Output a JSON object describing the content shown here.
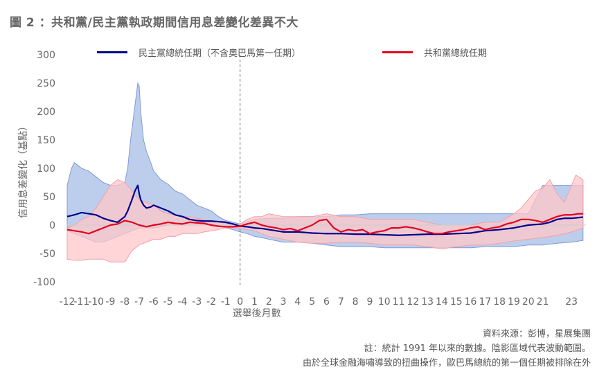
{
  "title": "圖 2 ：共和黨/民主黨執政期間信用息差變化差異不大",
  "legend": {
    "dem_label": "民主黨總統任期（不含奧巴馬第一任期）",
    "rep_label": "共和黨總統任期"
  },
  "footer": {
    "source": "資料來源：彭博，星展集團",
    "note1": "註：統計 1991 年以來的數據。陰影區域代表波動範圍。",
    "note2": "由於全球金融海嘯導致的扭曲操作，歐巴馬總統的第一個任期被排除在外"
  },
  "colors": {
    "dem_line": "#00008B",
    "dem_band": "#A7BDE6",
    "dem_band_edge": "#7F9AD6",
    "rep_line": "#E3001B",
    "rep_band": "#FFC7C9",
    "rep_band_edge": "#F4A0A5",
    "zero_line": "#999999"
  },
  "chart_data": {
    "type": "line",
    "xlabel": "選舉後月數",
    "ylabel": "信用息差變化（基點）",
    "xlim": [
      -12,
      24
    ],
    "ylim": [
      -100,
      300
    ],
    "x_ticks": [
      -12,
      -11,
      -10,
      -9,
      -8,
      -7,
      -6,
      -5,
      -4,
      -3,
      -2,
      -1,
      0,
      1,
      2,
      3,
      4,
      5,
      6,
      7,
      8,
      9,
      10,
      11,
      12,
      13,
      14,
      15,
      16,
      17,
      18,
      19,
      20,
      21,
      23
    ],
    "y_ticks": [
      -100,
      -50,
      0,
      50,
      100,
      150,
      200,
      250,
      300
    ],
    "election_marker_x": 0,
    "grid": false,
    "legend_position": "top",
    "series": [
      {
        "name": "民主黨總統任期（不含奧巴馬第一任期）",
        "x": [
          -12,
          -11.5,
          -11,
          -10.5,
          -10,
          -9.5,
          -9,
          -8.5,
          -8,
          -7.8,
          -7.5,
          -7.3,
          -7.1,
          -7,
          -6.9,
          -6.7,
          -6.5,
          -6.2,
          -6,
          -5.5,
          -5,
          -4.5,
          -4,
          -3.5,
          -3,
          -2.5,
          -2,
          -1.5,
          -1,
          -0.5,
          0,
          0.5,
          1,
          1.5,
          2,
          2.5,
          3,
          4,
          5,
          6,
          7,
          8,
          9,
          10,
          11,
          12,
          13,
          14,
          15,
          16,
          17,
          18,
          19,
          20,
          20.5,
          21,
          21.5,
          22,
          22.5,
          23,
          23.8
        ],
        "values": [
          15,
          18,
          22,
          20,
          18,
          12,
          8,
          5,
          15,
          25,
          45,
          60,
          70,
          55,
          45,
          35,
          30,
          32,
          35,
          30,
          25,
          18,
          15,
          10,
          8,
          7,
          7,
          6,
          5,
          2,
          -2,
          -3,
          -5,
          -6,
          -8,
          -10,
          -12,
          -12,
          -14,
          -15,
          -15,
          -16,
          -16,
          -17,
          -18,
          -17,
          -16,
          -16,
          -15,
          -14,
          -10,
          -8,
          -5,
          0,
          1,
          2,
          5,
          10,
          12,
          12,
          14
        ]
      },
      {
        "name": "民主黨 波動範圍上限",
        "x": [
          -12,
          -11.7,
          -11.5,
          -11,
          -10.5,
          -10,
          -9.5,
          -9,
          -8.5,
          -8,
          -7.8,
          -7.6,
          -7.4,
          -7.2,
          -7.1,
          -7,
          -6.9,
          -6.8,
          -6.7,
          -6.5,
          -6.2,
          -6,
          -5.5,
          -5,
          -4.5,
          -4,
          -3.5,
          -3,
          -2.5,
          -2,
          -1.5,
          -1,
          -0.5,
          0,
          0.5,
          1,
          2,
          3,
          4,
          5,
          6,
          7,
          8,
          9,
          10,
          11,
          12,
          13,
          14,
          15,
          16,
          17,
          18,
          19,
          20,
          21,
          22,
          23,
          23.8
        ],
        "values": [
          70,
          100,
          110,
          100,
          95,
          85,
          75,
          70,
          70,
          75,
          100,
          150,
          190,
          230,
          250,
          245,
          200,
          175,
          150,
          130,
          110,
          95,
          80,
          72,
          60,
          55,
          45,
          35,
          30,
          25,
          15,
          8,
          5,
          2,
          6,
          10,
          12,
          12,
          15,
          15,
          15,
          18,
          18,
          20,
          20,
          20,
          20,
          20,
          20,
          20,
          20,
          20,
          20,
          20,
          20,
          70,
          70,
          70,
          70
        ]
      },
      {
        "name": "民主黨 波動範圍下限",
        "x": [
          -12,
          -11.5,
          -11,
          -10.5,
          -10,
          -9.5,
          -9,
          -8.5,
          -8,
          -7.5,
          -7,
          -6.5,
          -6,
          -5.5,
          -5,
          -4.5,
          -4,
          -3.5,
          -3,
          -2.5,
          -2,
          -1.5,
          -1,
          -0.5,
          0,
          0.5,
          1,
          1.5,
          2,
          3,
          4,
          5,
          6,
          7,
          8,
          9,
          10,
          11,
          12,
          13,
          14,
          15,
          16,
          17,
          18,
          19,
          20,
          21,
          22,
          23,
          23.8
        ],
        "values": [
          -10,
          -15,
          -20,
          -25,
          -30,
          -30,
          -25,
          -20,
          -15,
          -10,
          -5,
          -5,
          -5,
          -3,
          0,
          0,
          0,
          0,
          0,
          0,
          0,
          -2,
          -5,
          -8,
          -12,
          -15,
          -20,
          -22,
          -25,
          -30,
          -30,
          -32,
          -35,
          -38,
          -38,
          -38,
          -40,
          -40,
          -40,
          -40,
          -40,
          -40,
          -40,
          -38,
          -38,
          -38,
          -35,
          -35,
          -32,
          -30,
          -27
        ]
      },
      {
        "name": "共和黨總統任期",
        "x": [
          -12,
          -11.5,
          -11,
          -10.5,
          -10,
          -9.5,
          -9,
          -8.5,
          -8,
          -7.5,
          -7,
          -6.5,
          -6,
          -5.5,
          -5,
          -4.5,
          -4,
          -3.5,
          -3,
          -2.5,
          -2,
          -1.5,
          -1,
          -0.5,
          0,
          0.5,
          1,
          1.5,
          2,
          2.5,
          3,
          3.5,
          4,
          4.5,
          5,
          5.5,
          6,
          6.5,
          7,
          7.5,
          8,
          8.5,
          9,
          9.5,
          10,
          10.5,
          11,
          11.5,
          12,
          12.5,
          13,
          13.5,
          14,
          14.5,
          15,
          15.5,
          16,
          16.5,
          17,
          17.5,
          18,
          18.5,
          19,
          19.5,
          20,
          20.5,
          21,
          21.5,
          22,
          22.5,
          23,
          23.5,
          23.8
        ],
        "values": [
          -8,
          -10,
          -12,
          -15,
          -10,
          -5,
          0,
          2,
          8,
          5,
          0,
          -3,
          0,
          2,
          5,
          3,
          2,
          5,
          4,
          3,
          0,
          -2,
          -3,
          -3,
          -2,
          2,
          5,
          0,
          -3,
          -5,
          -8,
          -6,
          -10,
          -5,
          0,
          8,
          10,
          -5,
          -12,
          -8,
          -10,
          -8,
          -15,
          -12,
          -10,
          -5,
          -5,
          -3,
          -5,
          -8,
          -12,
          -15,
          -15,
          -12,
          -10,
          -8,
          -5,
          -3,
          -8,
          -5,
          -3,
          2,
          5,
          10,
          10,
          8,
          5,
          10,
          15,
          18,
          18,
          20,
          20
        ]
      },
      {
        "name": "共和黨 波動範圍上限",
        "x": [
          -12,
          -11.5,
          -11,
          -10.5,
          -10,
          -9.5,
          -9,
          -8.5,
          -8,
          -7.5,
          -7,
          -6.5,
          -6,
          -5.5,
          -5,
          -4.5,
          -4,
          -3.5,
          -3,
          -2.5,
          -2,
          -1.5,
          -1,
          -0.5,
          0,
          0.5,
          1,
          1.5,
          2,
          3,
          4,
          5,
          6,
          7,
          8,
          9,
          10,
          11,
          12,
          13,
          14,
          15,
          16,
          17,
          18,
          19,
          19.5,
          20,
          20.5,
          21,
          21.5,
          22,
          22.5,
          23,
          23.3,
          23.8
        ],
        "values": [
          -5,
          0,
          10,
          15,
          30,
          50,
          70,
          80,
          75,
          60,
          45,
          40,
          35,
          25,
          20,
          18,
          15,
          15,
          12,
          10,
          8,
          5,
          3,
          2,
          2,
          10,
          15,
          15,
          20,
          15,
          15,
          15,
          20,
          15,
          15,
          10,
          10,
          10,
          10,
          5,
          0,
          0,
          0,
          5,
          5,
          20,
          30,
          45,
          60,
          65,
          80,
          55,
          40,
          70,
          88,
          80
        ]
      },
      {
        "name": "共和黨 波動範圍下限",
        "x": [
          -12,
          -11.5,
          -11,
          -10.5,
          -10,
          -9.5,
          -9,
          -8.5,
          -8,
          -7.5,
          -7,
          -6.5,
          -6,
          -5.5,
          -5,
          -4.5,
          -4,
          -3.5,
          -3,
          -2.5,
          -2,
          -1.5,
          -1,
          -0.5,
          0,
          0.5,
          1,
          1.5,
          2,
          3,
          4,
          5,
          6,
          7,
          8,
          9,
          10,
          11,
          12,
          13,
          14,
          15,
          16,
          17,
          18,
          19,
          20,
          21,
          22,
          23,
          23.8
        ],
        "values": [
          -60,
          -62,
          -62,
          -60,
          -60,
          -60,
          -65,
          -65,
          -65,
          -45,
          -35,
          -30,
          -25,
          -25,
          -20,
          -20,
          -15,
          -15,
          -15,
          -12,
          -10,
          -8,
          -5,
          -5,
          -5,
          -8,
          -10,
          -15,
          -20,
          -25,
          -30,
          -32,
          -32,
          -30,
          -30,
          -32,
          -35,
          -35,
          -35,
          -38,
          -42,
          -38,
          -35,
          -35,
          -32,
          -28,
          -25,
          -22,
          -18,
          -12,
          -5
        ]
      }
    ]
  }
}
